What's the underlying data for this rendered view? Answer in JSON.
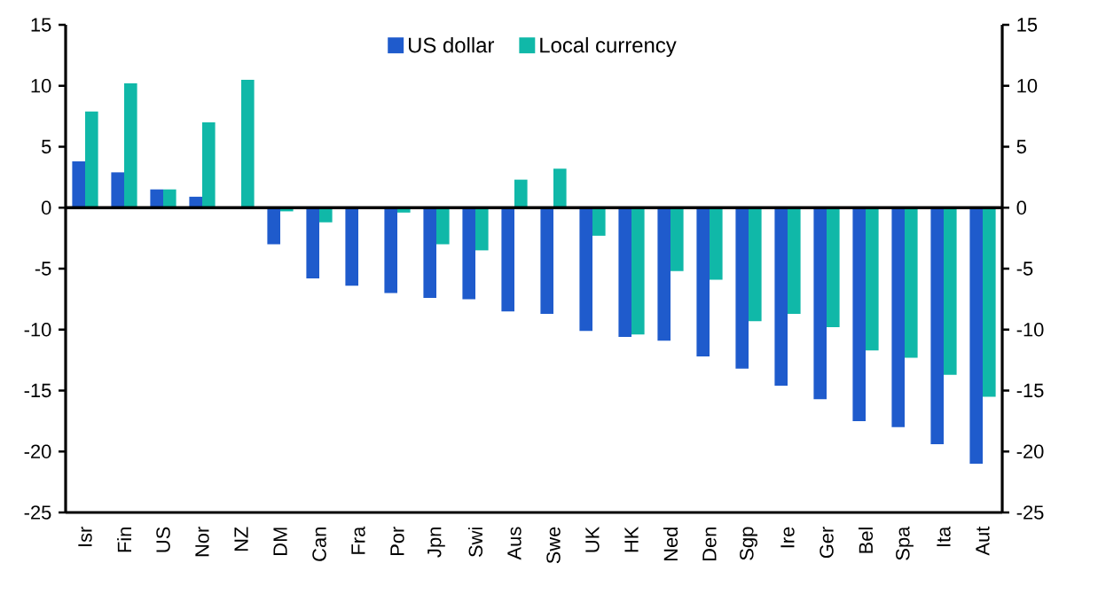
{
  "chart_data": {
    "type": "bar",
    "categories": [
      "Isr",
      "Fin",
      "US",
      "Nor",
      "NZ",
      "DM",
      "Can",
      "Fra",
      "Por",
      "Jpn",
      "Swi",
      "Aus",
      "Swe",
      "UK",
      "HK",
      "Ned",
      "Den",
      "Sgp",
      "Ire",
      "Ger",
      "Bel",
      "Spa",
      "Ita",
      "Aut"
    ],
    "series": [
      {
        "name": "US dollar",
        "color": "#1f5bcc",
        "values": [
          3.8,
          2.9,
          1.5,
          0.9,
          0,
          -3.0,
          -5.8,
          -6.4,
          -7.0,
          -7.4,
          -7.5,
          -8.5,
          -8.7,
          -10.1,
          -10.6,
          -10.9,
          -12.2,
          -13.2,
          -14.6,
          -15.7,
          -17.5,
          -18.0,
          -19.4,
          -21.0
        ]
      },
      {
        "name": "Local currency",
        "color": "#10b8a8",
        "values": [
          7.9,
          10.2,
          1.5,
          7.0,
          10.5,
          -0.3,
          -1.2,
          0,
          -0.4,
          -3.0,
          -3.5,
          2.3,
          3.2,
          -2.3,
          -10.4,
          -5.2,
          -5.9,
          -9.3,
          -8.7,
          -9.8,
          -11.7,
          -12.3,
          -13.7,
          -15.5
        ]
      }
    ],
    "ylim": [
      -25,
      15
    ],
    "yticks": [
      -25,
      -20,
      -15,
      -10,
      -5,
      0,
      5,
      10,
      15
    ],
    "y2lim": [
      -25,
      15
    ],
    "y2ticks": [
      -25,
      -20,
      -15,
      -10,
      -5,
      0,
      5,
      10,
      15
    ],
    "ref_lines": [
      {
        "axis": "y",
        "value": 0
      }
    ],
    "legend": "top",
    "grid": false
  }
}
